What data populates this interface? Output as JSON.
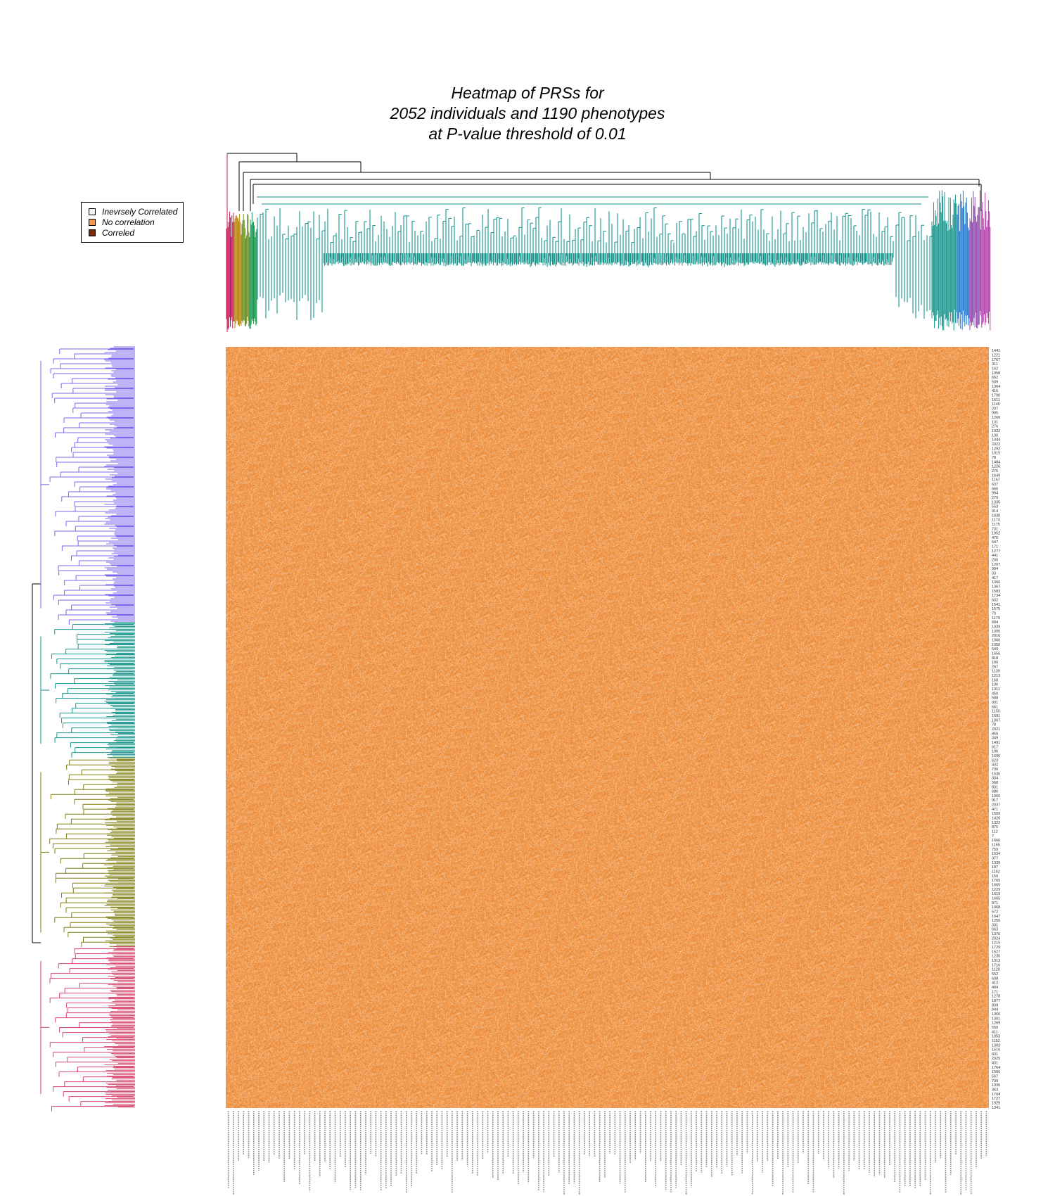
{
  "title": {
    "lines": [
      "Heatmap of PRSs for",
      "2052 individuals and 1190 phenotypes",
      "at P-value threshold of 0.01"
    ]
  },
  "legend": {
    "items": [
      {
        "label": "Inevrsely Correlated",
        "color": "#f5f5f5"
      },
      {
        "label": "No correlation",
        "color": "#f19a4e"
      },
      {
        "label": "Correled",
        "color": "#7a2a0e"
      }
    ]
  },
  "colors": {
    "heat_base": "#f19a4e",
    "heat_light": "#f6b983",
    "heat_dark": "#e07f30",
    "col_dendro_main": "#14948c",
    "col_dendro_left": [
      "#c2185b",
      "#b8860b",
      "#6b8e23",
      "#1a9850"
    ],
    "col_dendro_right": [
      "#1976d2",
      "#8e44ad",
      "#b03aa8"
    ],
    "row_clusters": [
      "#7b68ee",
      "#14948c",
      "#7f7f10",
      "#d6456f"
    ]
  },
  "chart_data": {
    "type": "heatmap",
    "title": "Heatmap of PRSs for 2052 individuals and 1190 phenotypes at P-value threshold of 0.01",
    "n_individuals": 2052,
    "n_phenotypes": 1190,
    "p_value_threshold": 0.01,
    "dominant_value": "No correlation",
    "row_cluster_fractions": [
      0.362,
      0.178,
      0.248,
      0.212
    ],
    "row_labels": [
      "1441",
      "1221",
      "1767",
      "311",
      "162",
      "1958",
      "662",
      "509",
      "1364",
      "416",
      "1790",
      "1511",
      "1145",
      "207",
      "905",
      "1269",
      "131",
      "276",
      "1932",
      "130",
      "1444",
      "2022",
      "1292",
      "1915",
      "78",
      "1484",
      "1226",
      "275",
      "1649",
      "1157",
      "637",
      "666",
      "994",
      "279",
      "1335",
      "553",
      "914",
      "1830",
      "1173",
      "1175",
      "731",
      "1952",
      "476",
      "647",
      "171",
      "1277",
      "441",
      "200",
      "1207",
      "904",
      "33",
      "417",
      "1366",
      "1367",
      "1583",
      "1734",
      "632",
      "1541",
      "1575",
      "70",
      "1179",
      "884",
      "1039",
      "1305",
      "2016",
      "1060",
      "1050",
      "649",
      "1656",
      "818",
      "180",
      "297",
      "1139",
      "1213",
      "168",
      "136",
      "1311",
      "450",
      "588",
      "901",
      "661",
      "1150",
      "1691",
      "1067",
      "78",
      "2021",
      "855",
      "349",
      "1491",
      "617",
      "196",
      "1696",
      "623",
      "332",
      "730",
      "1536",
      "334",
      "368",
      "831",
      "686",
      "1060",
      "917",
      "2037",
      "471",
      "1509",
      "1420",
      "1322",
      "876",
      "112",
      "7",
      "1666",
      "1165",
      "759",
      "1534",
      "377",
      "1339",
      "187",
      "1162",
      "150",
      "1765",
      "1665",
      "1229",
      "1619",
      "1665",
      "871",
      "1068",
      "572",
      "1647",
      "1256",
      "331",
      "663",
      "1376",
      "2024",
      "1215",
      "1729",
      "1527",
      "1235",
      "1313",
      "1716",
      "1120",
      "552",
      "608",
      "413",
      "484",
      "171",
      "1278",
      "1877",
      "839",
      "944",
      "1360",
      "1301",
      "1269",
      "550",
      "411",
      "1053",
      "1152",
      "1303",
      "1516",
      "831",
      "2025",
      "431",
      "1764",
      "1566",
      "567",
      "739",
      "1336",
      "363",
      "1704",
      "1727",
      "1929",
      "1341"
    ],
    "col_label_count": 150
  }
}
